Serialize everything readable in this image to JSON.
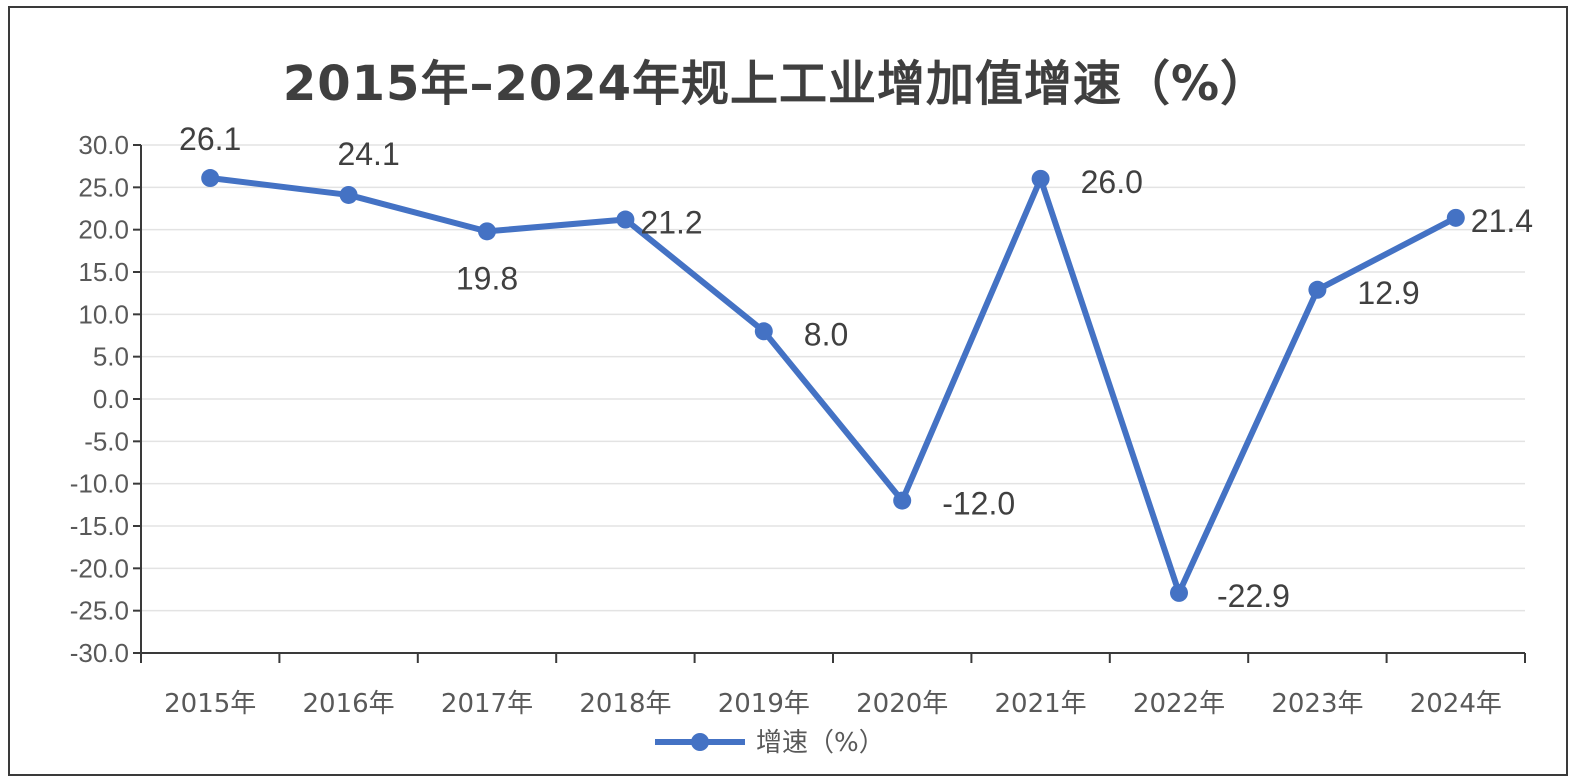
{
  "chart_data": {
    "type": "line",
    "title": "2015年–2024年规上工业增加值增速（%）",
    "categories": [
      "2015年",
      "2016年",
      "2017年",
      "2018年",
      "2019年",
      "2020年",
      "2021年",
      "2022年",
      "2023年",
      "2024年"
    ],
    "series": [
      {
        "name": "增速（%）",
        "values": [
          26.1,
          24.1,
          19.8,
          21.2,
          8.0,
          -12.0,
          26.0,
          -22.9,
          12.9,
          21.4
        ],
        "color": "#4472c4"
      }
    ],
    "data_labels": [
      "26.1",
      "24.1",
      "19.8",
      "21.2",
      "8.0",
      "-12.0",
      "26.0",
      "-22.9",
      "12.9",
      "21.4"
    ],
    "y_ticks": [
      "30.0",
      "25.0",
      "20.0",
      "15.0",
      "10.0",
      "5.0",
      "0.0",
      "-5.0",
      "-10.0",
      "-15.0",
      "-20.0",
      "-25.0",
      "-30.0"
    ],
    "ylim": [
      -30,
      30
    ],
    "y_step": 5,
    "grid": true,
    "legend_position": "bottom"
  }
}
